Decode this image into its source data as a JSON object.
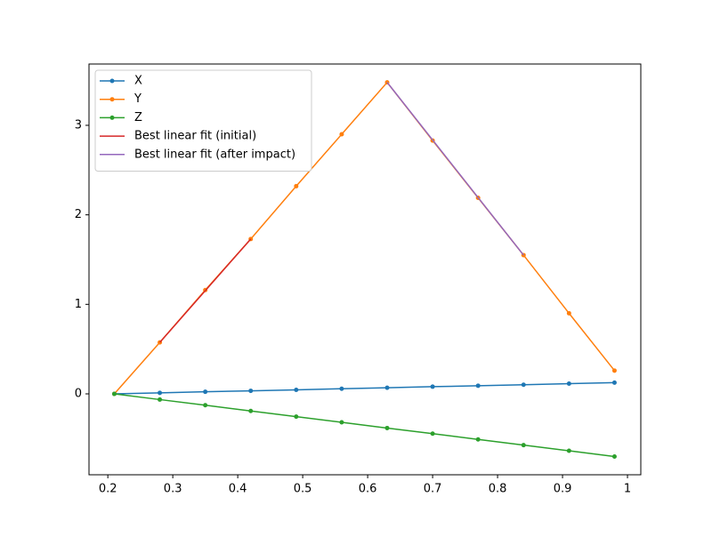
{
  "chart_data": {
    "type": "line",
    "xlim": [
      0.171,
      1.0205
    ],
    "ylim": [
      -0.904,
      3.685
    ],
    "xticks": [
      0.2,
      0.3,
      0.4,
      0.5,
      0.6,
      0.7,
      0.8,
      0.9,
      1.0
    ],
    "yticks": [
      0,
      1,
      2,
      3
    ],
    "legend": "upper left",
    "series": [
      {
        "name": "X",
        "color": "#1f77b4",
        "marker": "o",
        "x": [
          0.21,
          0.28,
          0.35,
          0.42,
          0.49,
          0.56,
          0.63,
          0.7,
          0.77,
          0.84,
          0.91,
          0.98
        ],
        "values": [
          0,
          0.011,
          0.023,
          0.034,
          0.045,
          0.057,
          0.068,
          0.08,
          0.091,
          0.102,
          0.114,
          0.125
        ]
      },
      {
        "name": "Y",
        "color": "#ff7f0e",
        "marker": "o",
        "x": [
          0.21,
          0.28,
          0.35,
          0.42,
          0.49,
          0.56,
          0.63,
          0.7,
          0.77,
          0.84,
          0.91,
          0.98
        ],
        "values": [
          0,
          0.575,
          1.16,
          1.73,
          2.32,
          2.9,
          3.48,
          2.83,
          2.19,
          1.55,
          0.9,
          0.26
        ]
      },
      {
        "name": "Z",
        "color": "#2ca02c",
        "marker": "o",
        "x": [
          0.21,
          0.28,
          0.35,
          0.42,
          0.49,
          0.56,
          0.63,
          0.7,
          0.77,
          0.84,
          0.91,
          0.98
        ],
        "values": [
          0,
          -0.064,
          -0.127,
          -0.191,
          -0.255,
          -0.318,
          -0.382,
          -0.445,
          -0.509,
          -0.573,
          -0.636,
          -0.7
        ]
      },
      {
        "name": "Best linear fit (initial)",
        "color": "#d62728",
        "x": [
          0.28,
          0.42
        ],
        "values": [
          0.575,
          1.73
        ]
      },
      {
        "name": "Best linear fit (after impact)",
        "color": "#9467bd",
        "x": [
          0.63,
          0.84
        ],
        "values": [
          3.48,
          1.55
        ]
      }
    ]
  }
}
